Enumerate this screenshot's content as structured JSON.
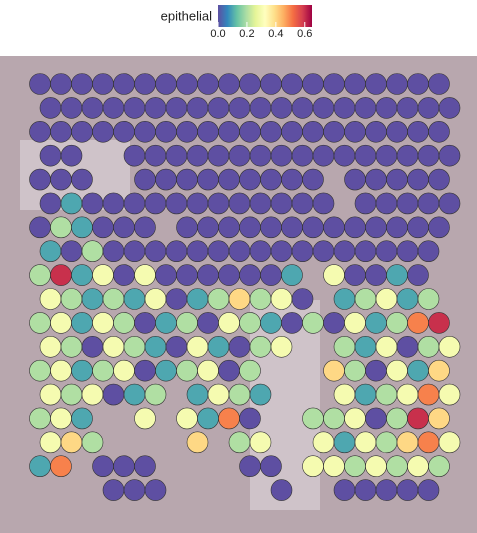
{
  "chart_data": {
    "type": "spatial",
    "legend_title": "epithelial",
    "clim": [
      0,
      0.65
    ],
    "ticks": [
      {
        "value": 0,
        "label": "0.0"
      },
      {
        "value": 0.2,
        "label": "0.2"
      },
      {
        "value": 0.4,
        "label": "0.4"
      },
      {
        "value": 0.6,
        "label": "0.6"
      }
    ],
    "colormap": [
      "#5e4fa2",
      "#3288bd",
      "#66c2a5",
      "#abdda4",
      "#e6f598",
      "#ffffbf",
      "#fee08b",
      "#fdae61",
      "#f46d43",
      "#d53e4f",
      "#9e0142"
    ],
    "rows": [
      [
        0,
        0,
        0,
        0,
        0,
        0,
        0,
        0,
        0,
        0,
        0,
        0,
        0,
        0,
        0,
        0,
        0,
        0,
        0,
        0
      ],
      [
        0,
        0,
        0,
        0,
        0,
        0,
        0,
        0,
        0,
        0,
        0,
        0,
        0,
        0,
        0,
        0,
        0,
        0,
        0,
        0
      ],
      [
        0,
        0,
        0,
        0,
        0,
        0,
        0,
        0,
        0,
        0,
        0,
        0,
        0,
        0,
        0,
        0,
        0,
        0,
        0,
        0
      ],
      [
        0,
        0,
        null,
        null,
        0,
        0,
        0,
        0,
        0,
        0,
        0,
        0,
        0,
        0,
        0,
        0,
        0,
        0,
        0,
        0
      ],
      [
        0,
        0,
        0,
        null,
        null,
        0,
        0,
        0,
        0,
        0,
        0,
        0,
        0,
        0,
        null,
        0,
        0,
        0,
        0,
        0
      ],
      [
        0,
        0.1,
        0,
        0,
        0,
        0,
        0,
        0,
        0,
        0,
        0,
        0,
        0,
        0,
        null,
        0,
        0,
        0,
        0,
        0
      ],
      [
        0,
        0.2,
        0.1,
        0,
        0,
        0,
        null,
        0,
        0,
        0,
        0,
        0,
        0,
        0,
        0,
        0,
        0,
        0,
        0,
        0
      ],
      [
        0.1,
        0,
        0.2,
        0,
        0,
        0,
        0,
        0,
        0,
        0,
        0,
        0,
        0,
        0,
        0,
        0,
        0,
        0,
        0,
        null
      ],
      [
        0.2,
        0.6,
        0.1,
        0.3,
        0,
        0.3,
        0,
        0,
        0,
        0,
        0,
        0,
        0.1,
        null,
        0.3,
        0,
        0,
        0.1,
        0,
        null
      ],
      [
        0.3,
        0.2,
        0.1,
        0.2,
        0.1,
        0.3,
        0,
        0.1,
        0.2,
        0.4,
        0.2,
        0.3,
        0,
        null,
        0.1,
        0.2,
        0.3,
        0.1,
        0.2,
        null
      ],
      [
        0.2,
        0.3,
        0.1,
        0.3,
        0.2,
        0,
        0.1,
        0.2,
        0,
        0.3,
        0.2,
        0.1,
        0,
        0.2,
        0,
        0.3,
        0.1,
        0.2,
        0.5,
        0.6
      ],
      [
        0.3,
        0.2,
        0,
        0.3,
        0.2,
        0.1,
        0,
        0.3,
        0.1,
        0,
        0.2,
        0.3,
        null,
        null,
        0.2,
        0.1,
        0.3,
        0,
        0.2,
        0.3
      ],
      [
        0.2,
        0.3,
        0.1,
        0.2,
        0.3,
        0,
        0.1,
        0.2,
        0.3,
        0,
        0.2,
        null,
        null,
        null,
        0.4,
        0.2,
        0,
        0.3,
        0.1,
        0.4
      ],
      [
        0.3,
        0.2,
        0.3,
        0,
        0.1,
        0.2,
        null,
        0.1,
        0.3,
        0.2,
        0.1,
        null,
        null,
        null,
        0.3,
        0.1,
        0.2,
        0.3,
        0.5,
        0.3
      ],
      [
        0.2,
        0.3,
        0.1,
        null,
        null,
        0.3,
        null,
        0.3,
        0.1,
        0.5,
        0,
        null,
        null,
        0.2,
        0.2,
        0.3,
        0,
        0.2,
        0.6,
        0.4
      ],
      [
        0.3,
        0.4,
        0.2,
        null,
        null,
        null,
        null,
        0.4,
        null,
        0.2,
        0.3,
        null,
        null,
        0.3,
        0.1,
        0.3,
        0.2,
        0.4,
        0.5,
        0.3
      ],
      [
        0.1,
        0.5,
        null,
        0,
        0,
        0,
        null,
        null,
        null,
        null,
        0,
        0,
        null,
        0.3,
        0.3,
        0.2,
        0.3,
        0.2,
        0.3,
        0.2
      ],
      [
        null,
        null,
        null,
        0,
        0,
        0,
        null,
        null,
        null,
        null,
        null,
        0,
        null,
        null,
        0,
        0,
        0,
        0,
        0,
        null
      ]
    ]
  }
}
